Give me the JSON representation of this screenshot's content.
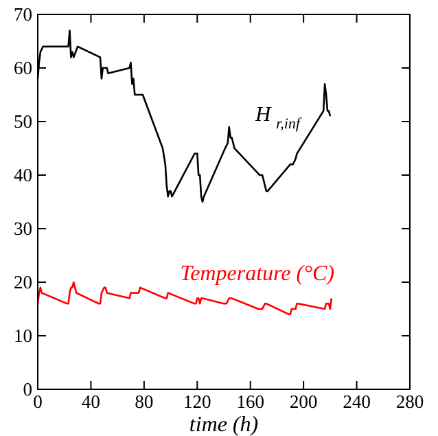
{
  "chart_data": {
    "type": "line",
    "title": "",
    "xlabel": "time (h)",
    "ylabel": "",
    "xlim": [
      0,
      280
    ],
    "ylim": [
      0,
      70
    ],
    "xticks": [
      0,
      40,
      80,
      120,
      160,
      200,
      240,
      280
    ],
    "yticks": [
      0,
      10,
      20,
      30,
      40,
      50,
      60,
      70
    ],
    "grid": false,
    "series": [
      {
        "name": "H",
        "subscript": "r,inf",
        "color": "#000000",
        "x": [
          0,
          1,
          2,
          4,
          23,
          24,
          25,
          26,
          27,
          30,
          47,
          48,
          49,
          52,
          53,
          69,
          70,
          71,
          72,
          73,
          79,
          94,
          96,
          97,
          98,
          99,
          100,
          101,
          118,
          120,
          121,
          122,
          123,
          124,
          125,
          141,
          143,
          144,
          145,
          146,
          147,
          148,
          167,
          169,
          170,
          171,
          172,
          173,
          190,
          192,
          194,
          195,
          215,
          216,
          217,
          218,
          219,
          220
        ],
        "y": [
          58,
          61,
          63,
          64,
          64,
          67,
          62,
          63,
          62,
          64,
          62,
          58,
          60,
          60,
          59,
          60,
          61,
          57,
          58,
          55,
          55,
          45,
          42,
          38,
          36,
          37,
          37,
          36,
          44,
          44,
          40,
          40,
          36,
          35,
          36,
          45,
          46,
          49,
          47,
          47,
          46,
          45,
          40,
          40,
          39,
          38,
          37,
          37,
          42,
          42,
          43,
          44,
          52,
          57,
          55,
          52,
          52,
          51
        ]
      },
      {
        "name": "Temperature (°C)",
        "color": "#ff0000",
        "x": [
          0,
          1,
          2,
          3,
          22,
          23,
          24,
          25,
          26,
          27,
          28,
          29,
          46,
          47,
          48,
          50,
          51,
          52,
          69,
          70,
          73,
          74,
          76,
          77,
          96,
          97,
          98,
          118,
          119,
          120,
          121,
          122,
          123,
          124,
          140,
          142,
          144,
          145,
          146,
          166,
          167,
          168,
          169,
          171,
          172,
          189,
          190,
          191,
          193,
          194,
          195,
          196,
          216,
          217,
          218,
          219,
          220,
          221
        ],
        "y": [
          16,
          18,
          19,
          18,
          16,
          16,
          18,
          19,
          19,
          20,
          19,
          18,
          16,
          16,
          18,
          19,
          19,
          18,
          17,
          18,
          18,
          18,
          18,
          19,
          17,
          17,
          18,
          16,
          16,
          17,
          17,
          16,
          17,
          17,
          16,
          16,
          17,
          17,
          17,
          15,
          15,
          15,
          15,
          16,
          16,
          14,
          14,
          15,
          15,
          15,
          16,
          16,
          15,
          16,
          16,
          16,
          15,
          17
        ]
      }
    ]
  }
}
